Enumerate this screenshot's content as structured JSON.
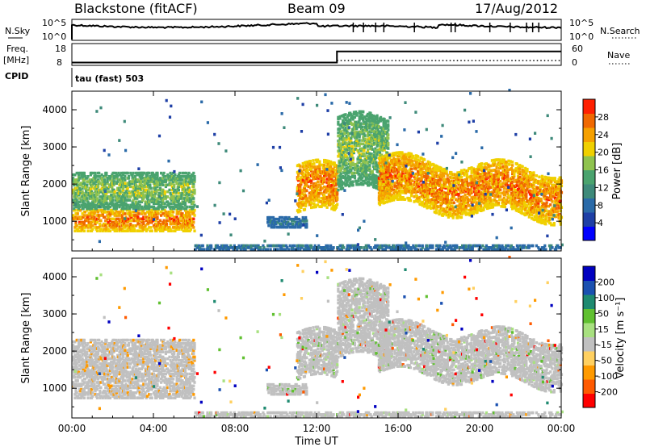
{
  "header": {
    "radar": "Blackstone (fitACF)",
    "beam": "Beam 09",
    "date": "17/Aug/2012"
  },
  "summary": {
    "nsky_label": "N.Sky",
    "nsky_ticks": [
      "10^5",
      "10^0"
    ],
    "nsearch_label": "N.Search",
    "nsearch_ticks": [
      "10^5",
      "10^0"
    ],
    "freq_label": "Freq.",
    "freq_unit": "[MHz]",
    "freq_ticks": [
      "18",
      "8"
    ],
    "nave_label": "Nave",
    "nave_ticks": [
      "60",
      "0"
    ],
    "cpid_label": "CPID",
    "cpid_value": "tau (fast) 503",
    "freq_step_time_hours": 13.0,
    "freq_before_mhz": 9.5,
    "freq_after_mhz": 15.5
  },
  "chart_data": [
    {
      "type": "heatmap",
      "panel": "power",
      "xlabel": "Time UT",
      "ylabel": "Slant Range [km]",
      "x_range_hours": [
        0,
        24
      ],
      "ylim": [
        200,
        4500
      ],
      "yticks": [
        "1000",
        "2000",
        "3000",
        "4000"
      ],
      "xticks": [
        "00:00",
        "04:00",
        "08:00",
        "12:00",
        "16:00",
        "20:00",
        "00:00"
      ],
      "colorbar": {
        "label": "Power [dB]",
        "ticks": [
          "28",
          "24",
          "20",
          "16",
          "12",
          "8",
          "4"
        ],
        "colors": [
          "#0000ff",
          "#1e3fa6",
          "#2a6aa8",
          "#3e8a7a",
          "#4aa36e",
          "#8fc34f",
          "#f0d000",
          "#f5a000",
          "#f06800",
          "#ff2000"
        ]
      },
      "echo_bands": [
        {
          "t0": 0.0,
          "t1": 6.0,
          "r0": 700,
          "r1": 1300,
          "level": "high"
        },
        {
          "t0": 0.0,
          "t1": 6.0,
          "r0": 1300,
          "r1": 2300,
          "level": "mid"
        },
        {
          "t0": 9.5,
          "t1": 11.5,
          "r0": 800,
          "r1": 1100,
          "level": "low"
        },
        {
          "t0": 11.0,
          "t1": 13.0,
          "r0": 1200,
          "r1": 2500,
          "level": "high"
        },
        {
          "t0": 13.0,
          "t1": 15.5,
          "r0": 1800,
          "r1": 3800,
          "level": "mid"
        },
        {
          "t0": 15.0,
          "t1": 24.0,
          "r0": 1400,
          "r1": 2700,
          "level": "high"
        },
        {
          "t0": 6.0,
          "t1": 24.0,
          "r0": 200,
          "r1": 350,
          "level": "low"
        }
      ]
    },
    {
      "type": "heatmap",
      "panel": "velocity",
      "xlabel": "Time UT",
      "ylabel": "Slant Range [km]",
      "x_range_hours": [
        0,
        24
      ],
      "ylim": [
        200,
        4500
      ],
      "yticks": [
        "1000",
        "2000",
        "3000",
        "4000"
      ],
      "xticks": [
        "00:00",
        "04:00",
        "08:00",
        "12:00",
        "16:00",
        "20:00",
        "00:00"
      ],
      "colorbar": {
        "label": "Velocity [m s⁻¹]",
        "ticks": [
          "200",
          "100",
          "50",
          "15",
          "-15",
          "-50",
          "-100",
          "-200"
        ],
        "colors": [
          "#ff0000",
          "#ff5a00",
          "#ff9a00",
          "#ffd060",
          "#c0c0c0",
          "#a8e080",
          "#60c030",
          "#1e8a70",
          "#1a50b0",
          "#0000c0"
        ]
      }
    }
  ]
}
